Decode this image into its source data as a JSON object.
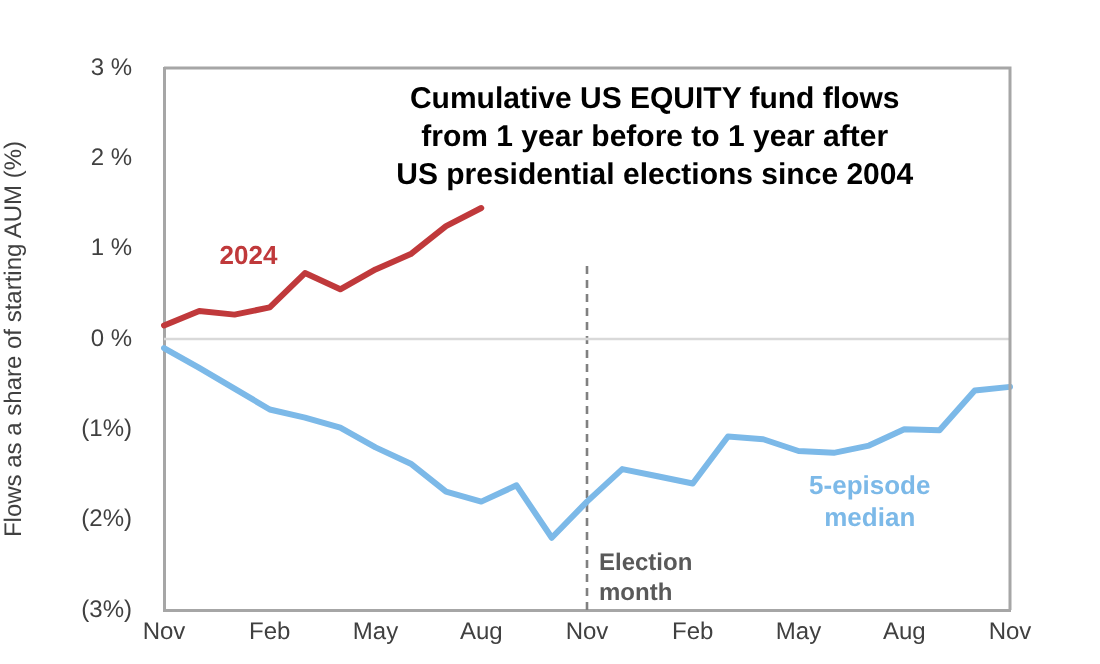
{
  "chart_data": {
    "type": "line",
    "title": "Cumulative US EQUITY fund flows\nfrom 1 year before to 1 year after\nUS presidential elections since 2004",
    "ylabel": "Flows as a share of starting AUM (%)",
    "categories": [
      "Nov",
      null,
      null,
      "Feb",
      null,
      null,
      "May",
      null,
      null,
      "Aug",
      null,
      null,
      "Nov",
      null,
      null,
      "Feb",
      null,
      null,
      "May",
      null,
      null,
      "Aug",
      null,
      null,
      "Nov"
    ],
    "ylim": [
      -3,
      3
    ],
    "yticks": [
      {
        "value": -3,
        "label": "(3%)"
      },
      {
        "value": -2,
        "label": "(2%)"
      },
      {
        "value": -1,
        "label": "(1%)"
      },
      {
        "value": 0,
        "label": "0 %"
      },
      {
        "value": 1,
        "label": "1 %"
      },
      {
        "value": 2,
        "label": "2 %"
      },
      {
        "value": 3,
        "label": "3 %"
      }
    ],
    "series": [
      {
        "name": "2024",
        "color": "#c0393b",
        "values": [
          0.15,
          0.31,
          0.27,
          0.35,
          0.73,
          0.55,
          0.77,
          0.94,
          1.25,
          1.45,
          null,
          null,
          null,
          null,
          null,
          null,
          null,
          null,
          null,
          null,
          null,
          null,
          null,
          null,
          null
        ]
      },
      {
        "name": "5-episode median",
        "color": "#7cb9e8",
        "values": [
          -0.1,
          -0.32,
          -0.55,
          -0.78,
          -0.87,
          -0.98,
          -1.2,
          -1.38,
          -1.69,
          -1.8,
          -1.62,
          -2.2,
          -1.8,
          -1.44,
          -1.52,
          -1.6,
          -1.08,
          -1.11,
          -1.24,
          -1.26,
          -1.18,
          -1.0,
          -1.01,
          -0.57,
          -0.53
        ]
      }
    ],
    "annotations": [
      "Election month"
    ],
    "ref_lines": [
      {
        "axis": "y",
        "value": 0,
        "color": "#d9d9d9",
        "line_style": "solid"
      }
    ],
    "grid": false,
    "legend": false,
    "marker": "none",
    "line_style": "solid"
  }
}
